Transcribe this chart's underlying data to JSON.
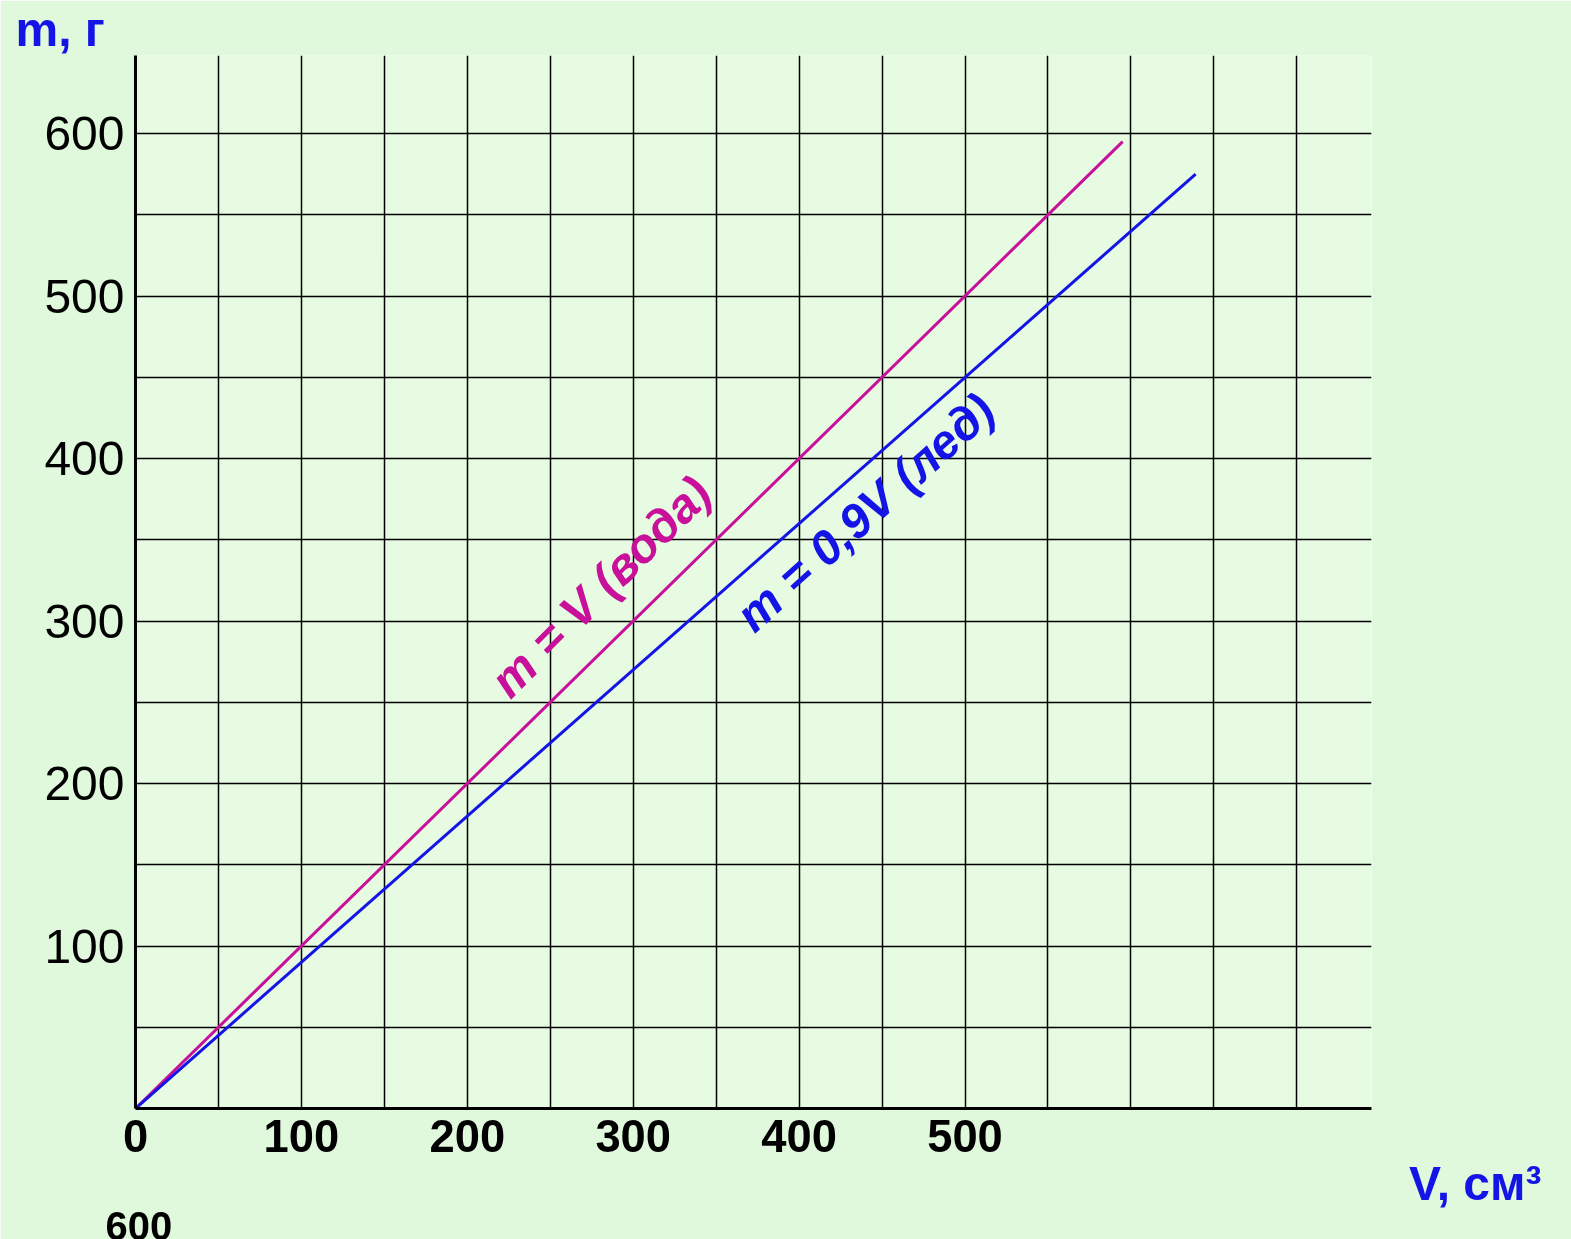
{
  "chart_data": {
    "type": "line",
    "xlabel": "V, см³",
    "ylabel": "m, г",
    "xlim": [
      0,
      745
    ],
    "ylim": [
      0,
      648
    ],
    "xticks": [
      0,
      {
        "value": 50,
        "label": null
      },
      100,
      {
        "value": 150,
        "label": null
      },
      200,
      {
        "value": 250,
        "label": null
      },
      300,
      {
        "value": 350,
        "label": null
      },
      400,
      {
        "value": 450,
        "label": null
      },
      500,
      {
        "value": 550,
        "label": null
      },
      {
        "value": 600,
        "label": null
      },
      {
        "value": 650,
        "label": null
      },
      {
        "value": 700,
        "label": null
      }
    ],
    "yticks": [
      {
        "value": 50,
        "label": null
      },
      100,
      {
        "value": 150,
        "label": null
      },
      200,
      {
        "value": 250,
        "label": null
      },
      300,
      {
        "value": 350,
        "label": null
      },
      400,
      {
        "value": 450,
        "label": null
      },
      500,
      {
        "value": 550,
        "label": null
      },
      600
    ],
    "grid": true,
    "marker": "none",
    "line_style": "solid",
    "series": [
      {
        "name": "m = V (вода)",
        "color": "#c8109a",
        "x": [
          0,
          595
        ],
        "values": [
          0,
          595
        ]
      },
      {
        "name": "m = 0,9V (лед)",
        "color": "#1414e6",
        "x": [
          0,
          639
        ],
        "values": [
          0,
          575
        ]
      }
    ],
    "annotations": [
      "600"
    ]
  }
}
